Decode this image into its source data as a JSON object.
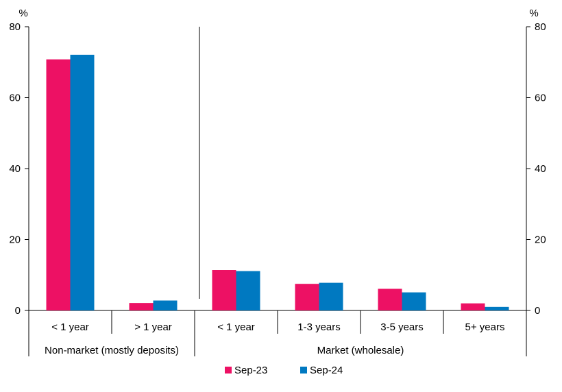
{
  "colors": {
    "sep23": "#ED1164",
    "sep24": "#0079C1",
    "axis": "#000000"
  },
  "chart_data": {
    "type": "bar",
    "title": "",
    "y_unit_left": "%",
    "y_unit_right": "%",
    "ylim": [
      0,
      80
    ],
    "yticks": [
      "0",
      "20",
      "40",
      "60",
      "80"
    ],
    "grid": false,
    "legend_position": "bottom-center",
    "groups": [
      {
        "label": "Non-market (mostly deposits)",
        "categories": [
          "< 1 year",
          "> 1 year"
        ]
      },
      {
        "label": "Market (wholesale)",
        "categories": [
          "< 1 year",
          "1-3 years",
          "3-5 years",
          "5+ years"
        ]
      }
    ],
    "categories": [
      "< 1 year",
      "> 1 year",
      "< 1 year",
      "1-3 years",
      "3-5 years",
      "5+ years"
    ],
    "series": [
      {
        "name": "Sep-23",
        "values": [
          70.8,
          2.1,
          11.4,
          7.5,
          6.1,
          2.0
        ]
      },
      {
        "name": "Sep-24",
        "values": [
          72.1,
          2.8,
          11.1,
          7.8,
          5.1,
          1.0
        ]
      }
    ]
  }
}
